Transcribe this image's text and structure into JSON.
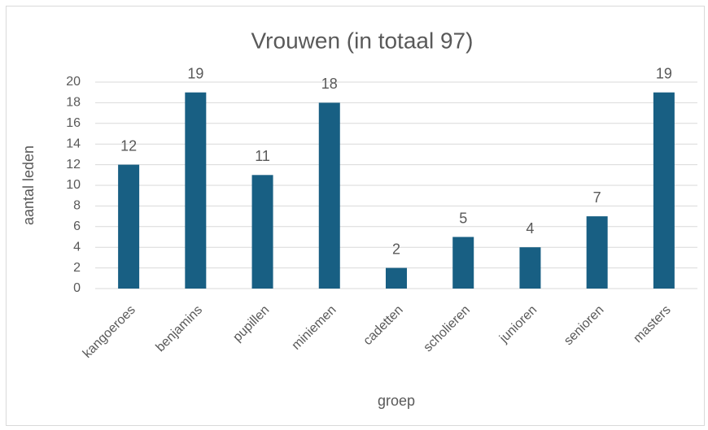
{
  "chart_data": {
    "type": "bar",
    "title": "Vrouwen (in totaal 97)",
    "x_label": "groep",
    "y_label": "aantal leden",
    "categories": [
      "kangoeroes",
      "benjamins",
      "pupillen",
      "miniemen",
      "cadetten",
      "scholieren",
      "junioren",
      "senioren",
      "masters"
    ],
    "values": [
      12,
      19,
      11,
      18,
      2,
      5,
      4,
      7,
      19
    ],
    "color": "#185f83",
    "ylim": [
      0,
      20
    ],
    "yticks": [
      0,
      2,
      4,
      6,
      8,
      10,
      12,
      14,
      16,
      18,
      20
    ],
    "grid": true
  }
}
